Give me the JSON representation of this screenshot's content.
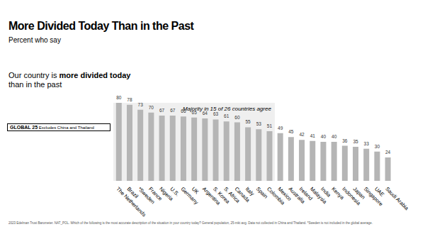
{
  "chart_data": {
    "type": "bar",
    "title": "More Divided Today Than in the Past",
    "subtitle": "Percent who say",
    "question_prefix": "Our country is ",
    "question_bold": "more divided today",
    "question_suffix": "than in the past",
    "annotation": "Majority in 15 of 26 countries agree",
    "global_label": "GLOBAL 25",
    "global_note": "Excludes China and Thailand",
    "footnote": "2023 Edelman Trust Barometer. NAT_POL. Which of the following is the most accurate description of the situation in your country today? General population, 25-mkt avg. Data not collected in China and Thailand. *Sweden is not included in the global average.",
    "categories": [
      "The Netherlands",
      "Brazil",
      "*Sweden",
      "France",
      "Nigeria",
      "U.S.",
      "Germany",
      "UK",
      "Argentina",
      "S. Korea",
      "S. Africa",
      "Canada",
      "Italy",
      "Spain",
      "Colombia",
      "Mexico",
      "Australia",
      "Ireland",
      "Malaysia",
      "India",
      "Kenya",
      "Indonesia",
      "Japan",
      "Singapore",
      "UAE",
      "Saudi Arabia"
    ],
    "values": [
      80,
      78,
      73,
      70,
      67,
      67,
      66,
      65,
      64,
      63,
      61,
      60,
      55,
      53,
      51,
      49,
      45,
      42,
      41,
      40,
      40,
      36,
      35,
      33,
      30,
      24
    ],
    "color": "#b5b5b5",
    "ylim": [
      0,
      80
    ],
    "data_labels": true,
    "tick_labels": false
  }
}
